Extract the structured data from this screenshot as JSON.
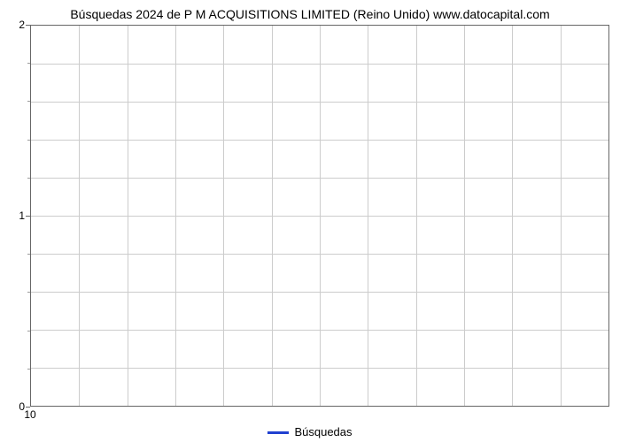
{
  "chart": {
    "type": "line",
    "title": "Búsquedas 2024 de P M ACQUISITIONS LIMITED (Reino Unido) www.datocapital.com",
    "title_fontsize": 14,
    "title_color": "#000000",
    "background_color": "#ffffff",
    "plot_border_color": "#666666",
    "grid_color": "#cccccc",
    "y_axis": {
      "lim": [
        0,
        2
      ],
      "major_ticks": [
        0,
        1,
        2
      ],
      "minor_tick_count_between": 4,
      "label_fontsize": 12
    },
    "x_axis": {
      "tick_labels": [
        "10"
      ],
      "tick_positions_pct": [
        0
      ],
      "vertical_gridlines": 12,
      "label_fontsize": 12
    },
    "horizontal_gridlines": 10,
    "series": [
      {
        "name": "Búsquedas",
        "color": "#2040d0",
        "line_width": 3,
        "values": []
      }
    ],
    "legend": {
      "position": "bottom-center",
      "fontsize": 13
    }
  }
}
